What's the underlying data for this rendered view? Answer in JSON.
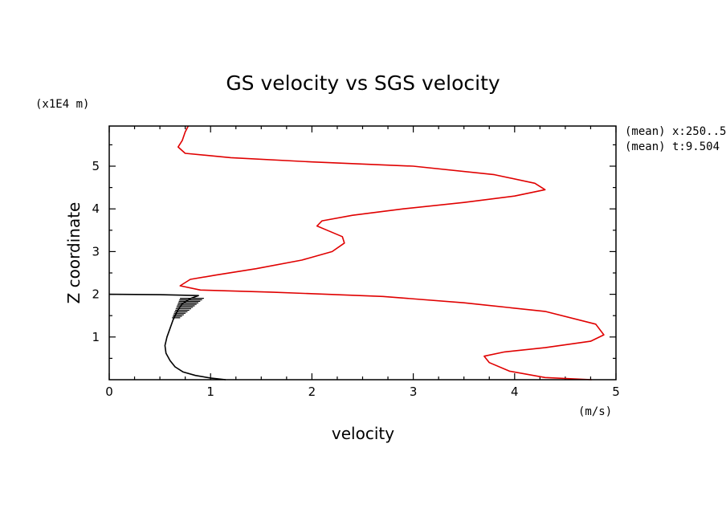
{
  "chart_data": {
    "type": "line",
    "title": "GS velocity vs SGS velocity",
    "xlabel": "velocity",
    "ylabel": "Z coordinate",
    "x_unit": "(m/s)",
    "y_unit": "(x1E4 m)",
    "xlim": [
      0,
      5
    ],
    "ylim": [
      0,
      5.94
    ],
    "x_ticks": [
      "0",
      "1",
      "2",
      "3",
      "4",
      "5"
    ],
    "y_ticks": [
      "1",
      "2",
      "3",
      "4",
      "5"
    ],
    "annotations": [
      "(mean) x:250..5",
      "(mean) t:9.504"
    ],
    "grid": false,
    "series": [
      {
        "color": "#e00000",
        "points": [
          [
            4.76,
            0.0
          ],
          [
            4.3,
            0.05
          ],
          [
            3.95,
            0.2
          ],
          [
            3.75,
            0.4
          ],
          [
            3.7,
            0.55
          ],
          [
            3.9,
            0.65
          ],
          [
            4.3,
            0.75
          ],
          [
            4.75,
            0.9
          ],
          [
            4.88,
            1.05
          ],
          [
            4.8,
            1.3
          ],
          [
            4.3,
            1.6
          ],
          [
            3.5,
            1.8
          ],
          [
            2.7,
            1.95
          ],
          [
            1.6,
            2.05
          ],
          [
            0.9,
            2.1
          ],
          [
            0.7,
            2.2
          ],
          [
            0.8,
            2.35
          ],
          [
            1.05,
            2.45
          ],
          [
            1.45,
            2.6
          ],
          [
            1.9,
            2.8
          ],
          [
            2.2,
            3.0
          ],
          [
            2.32,
            3.2
          ],
          [
            2.3,
            3.35
          ],
          [
            2.15,
            3.5
          ],
          [
            2.05,
            3.6
          ],
          [
            2.1,
            3.72
          ],
          [
            2.4,
            3.85
          ],
          [
            2.9,
            4.0
          ],
          [
            3.5,
            4.15
          ],
          [
            4.0,
            4.3
          ],
          [
            4.3,
            4.45
          ],
          [
            4.2,
            4.6
          ],
          [
            3.8,
            4.8
          ],
          [
            3.0,
            5.0
          ],
          [
            2.0,
            5.1
          ],
          [
            1.2,
            5.2
          ],
          [
            0.75,
            5.3
          ],
          [
            0.68,
            5.45
          ],
          [
            0.72,
            5.6
          ],
          [
            0.75,
            5.8
          ],
          [
            0.78,
            5.94
          ]
        ]
      },
      {
        "color": "#000000",
        "points": [
          [
            1.15,
            0.0
          ],
          [
            1.0,
            0.04
          ],
          [
            0.85,
            0.1
          ],
          [
            0.73,
            0.18
          ],
          [
            0.65,
            0.3
          ],
          [
            0.6,
            0.45
          ],
          [
            0.56,
            0.62
          ],
          [
            0.55,
            0.8
          ],
          [
            0.57,
            1.0
          ],
          [
            0.6,
            1.2
          ],
          [
            0.63,
            1.4
          ],
          [
            0.67,
            1.6
          ],
          [
            0.72,
            1.78
          ],
          [
            0.8,
            1.9
          ],
          [
            0.88,
            1.97
          ],
          [
            0.5,
            1.99
          ],
          [
            0.0,
            2.0
          ]
        ]
      }
    ]
  }
}
